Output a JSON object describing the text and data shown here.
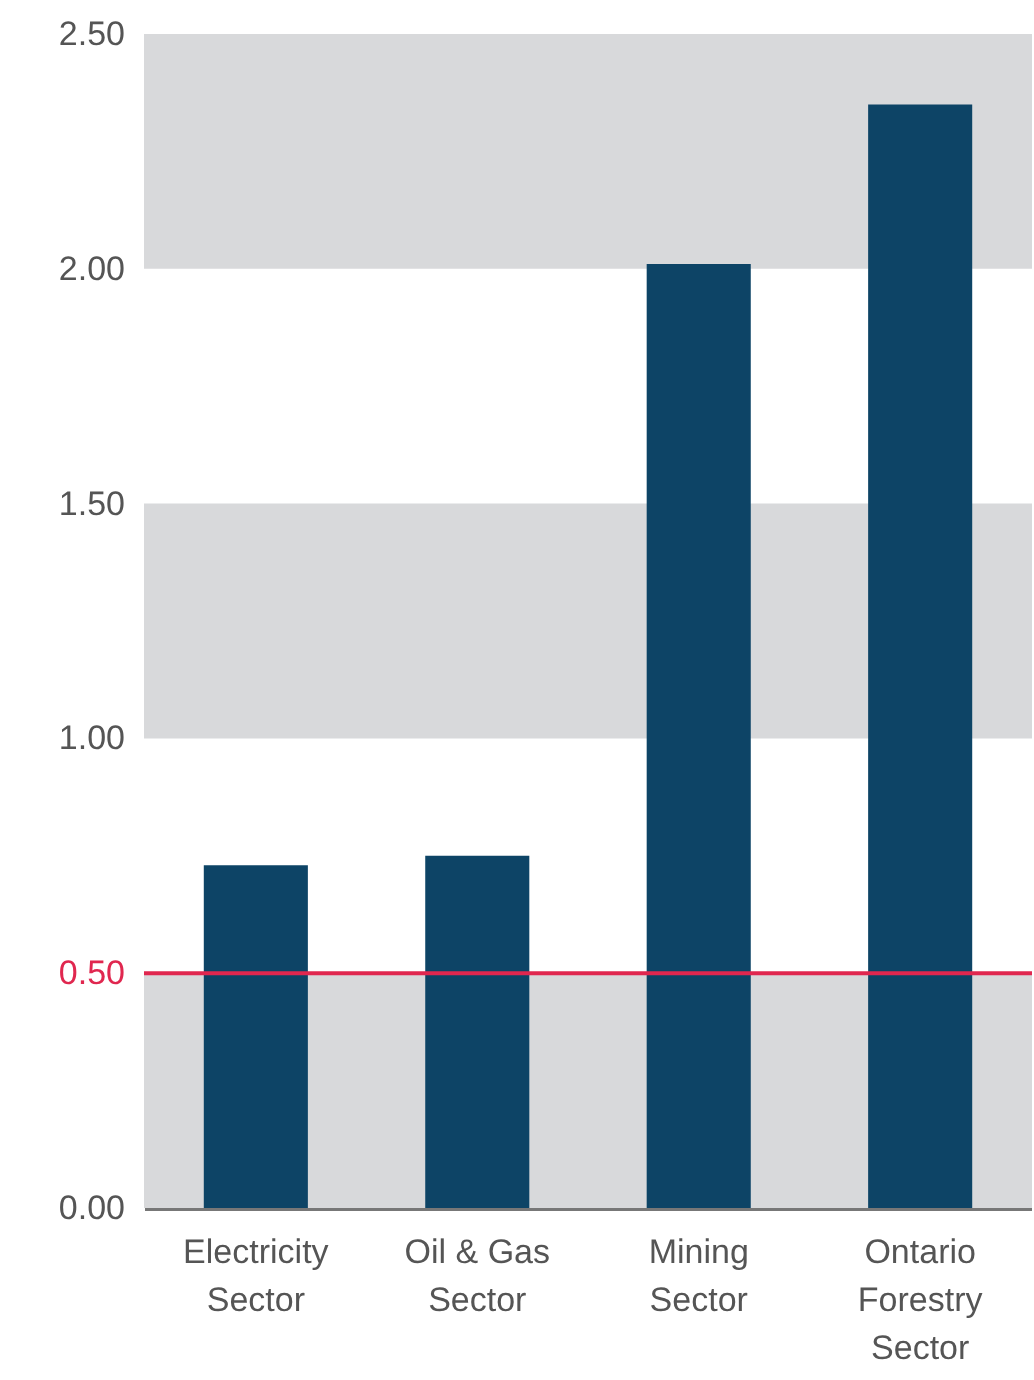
{
  "chart_data": {
    "type": "bar",
    "categories": [
      "Electricity Sector",
      "Oil & Gas Sector",
      "Mining Sector",
      "Ontario Forestry Sector"
    ],
    "values": [
      0.73,
      0.75,
      2.01,
      2.35
    ],
    "color": "#0d4466",
    "ylim": [
      0,
      2.5
    ],
    "yticks": [
      {
        "value": 0,
        "label": "0.00"
      },
      {
        "value": 0.5,
        "label": "0.50"
      },
      {
        "value": 1,
        "label": "1.00"
      },
      {
        "value": 1.5,
        "label": "1.50"
      },
      {
        "value": 2,
        "label": "2.00"
      },
      {
        "value": 2.5,
        "label": "2.50"
      }
    ],
    "bands": [
      {
        "axis": "y",
        "from": 0,
        "to": 0.5,
        "color": "#d8d9db"
      },
      {
        "axis": "y",
        "from": 1,
        "to": 1.5,
        "color": "#d8d9db"
      },
      {
        "axis": "y",
        "from": 2,
        "to": 2.5,
        "color": "#d8d9db"
      }
    ],
    "ref_lines": [
      {
        "axis": "y",
        "value": 0.5,
        "color": "#e0274f"
      }
    ]
  }
}
